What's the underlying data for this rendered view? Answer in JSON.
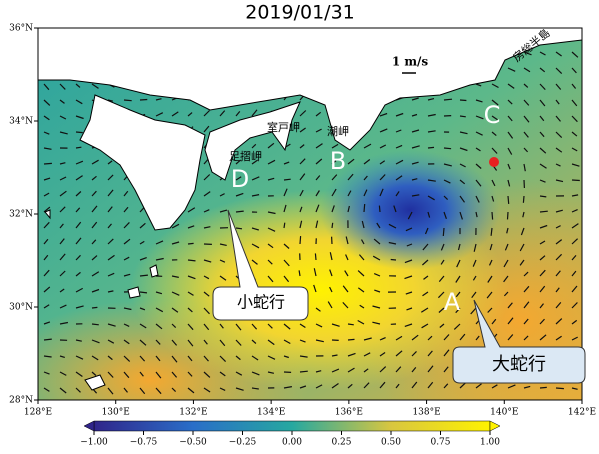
{
  "title": "2019/01/31",
  "lon_ticks": [
    {
      "value": 128,
      "label": "128°E"
    },
    {
      "value": 130,
      "label": "130°E"
    },
    {
      "value": 132,
      "label": "132°E"
    },
    {
      "value": 134,
      "label": "134°E"
    },
    {
      "value": 136,
      "label": "136°E"
    },
    {
      "value": 138,
      "label": "138°E"
    },
    {
      "value": 140,
      "label": "140°E"
    },
    {
      "value": 142,
      "label": "142°E"
    }
  ],
  "lat_ticks": [
    {
      "value": 28,
      "label": "28°N"
    },
    {
      "value": 30,
      "label": "30°N"
    },
    {
      "value": 32,
      "label": "32°N"
    },
    {
      "value": 34,
      "label": "34°N"
    },
    {
      "value": 36,
      "label": "36°N"
    }
  ],
  "colorbar": {
    "lim": [
      -1,
      1
    ],
    "ticks": [
      {
        "value": -1,
        "label": "−1.00"
      },
      {
        "value": -0.75,
        "label": "−0.75"
      },
      {
        "value": -0.5,
        "label": "−0.50"
      },
      {
        "value": -0.25,
        "label": "−0.25"
      },
      {
        "value": 0,
        "label": "0.00"
      },
      {
        "value": 0.25,
        "label": "0.25"
      },
      {
        "value": 0.5,
        "label": "0.50"
      },
      {
        "value": 0.75,
        "label": "0.75"
      },
      {
        "value": 1,
        "label": "1.00"
      }
    ]
  },
  "scale_label": "1 m/s",
  "places": [
    "足摺岬",
    "室戸岬",
    "潮岬",
    "房総半島"
  ],
  "letters": [
    "A",
    "B",
    "C",
    "D"
  ],
  "callouts": [
    "小蛇行",
    "大蛇行"
  ]
}
